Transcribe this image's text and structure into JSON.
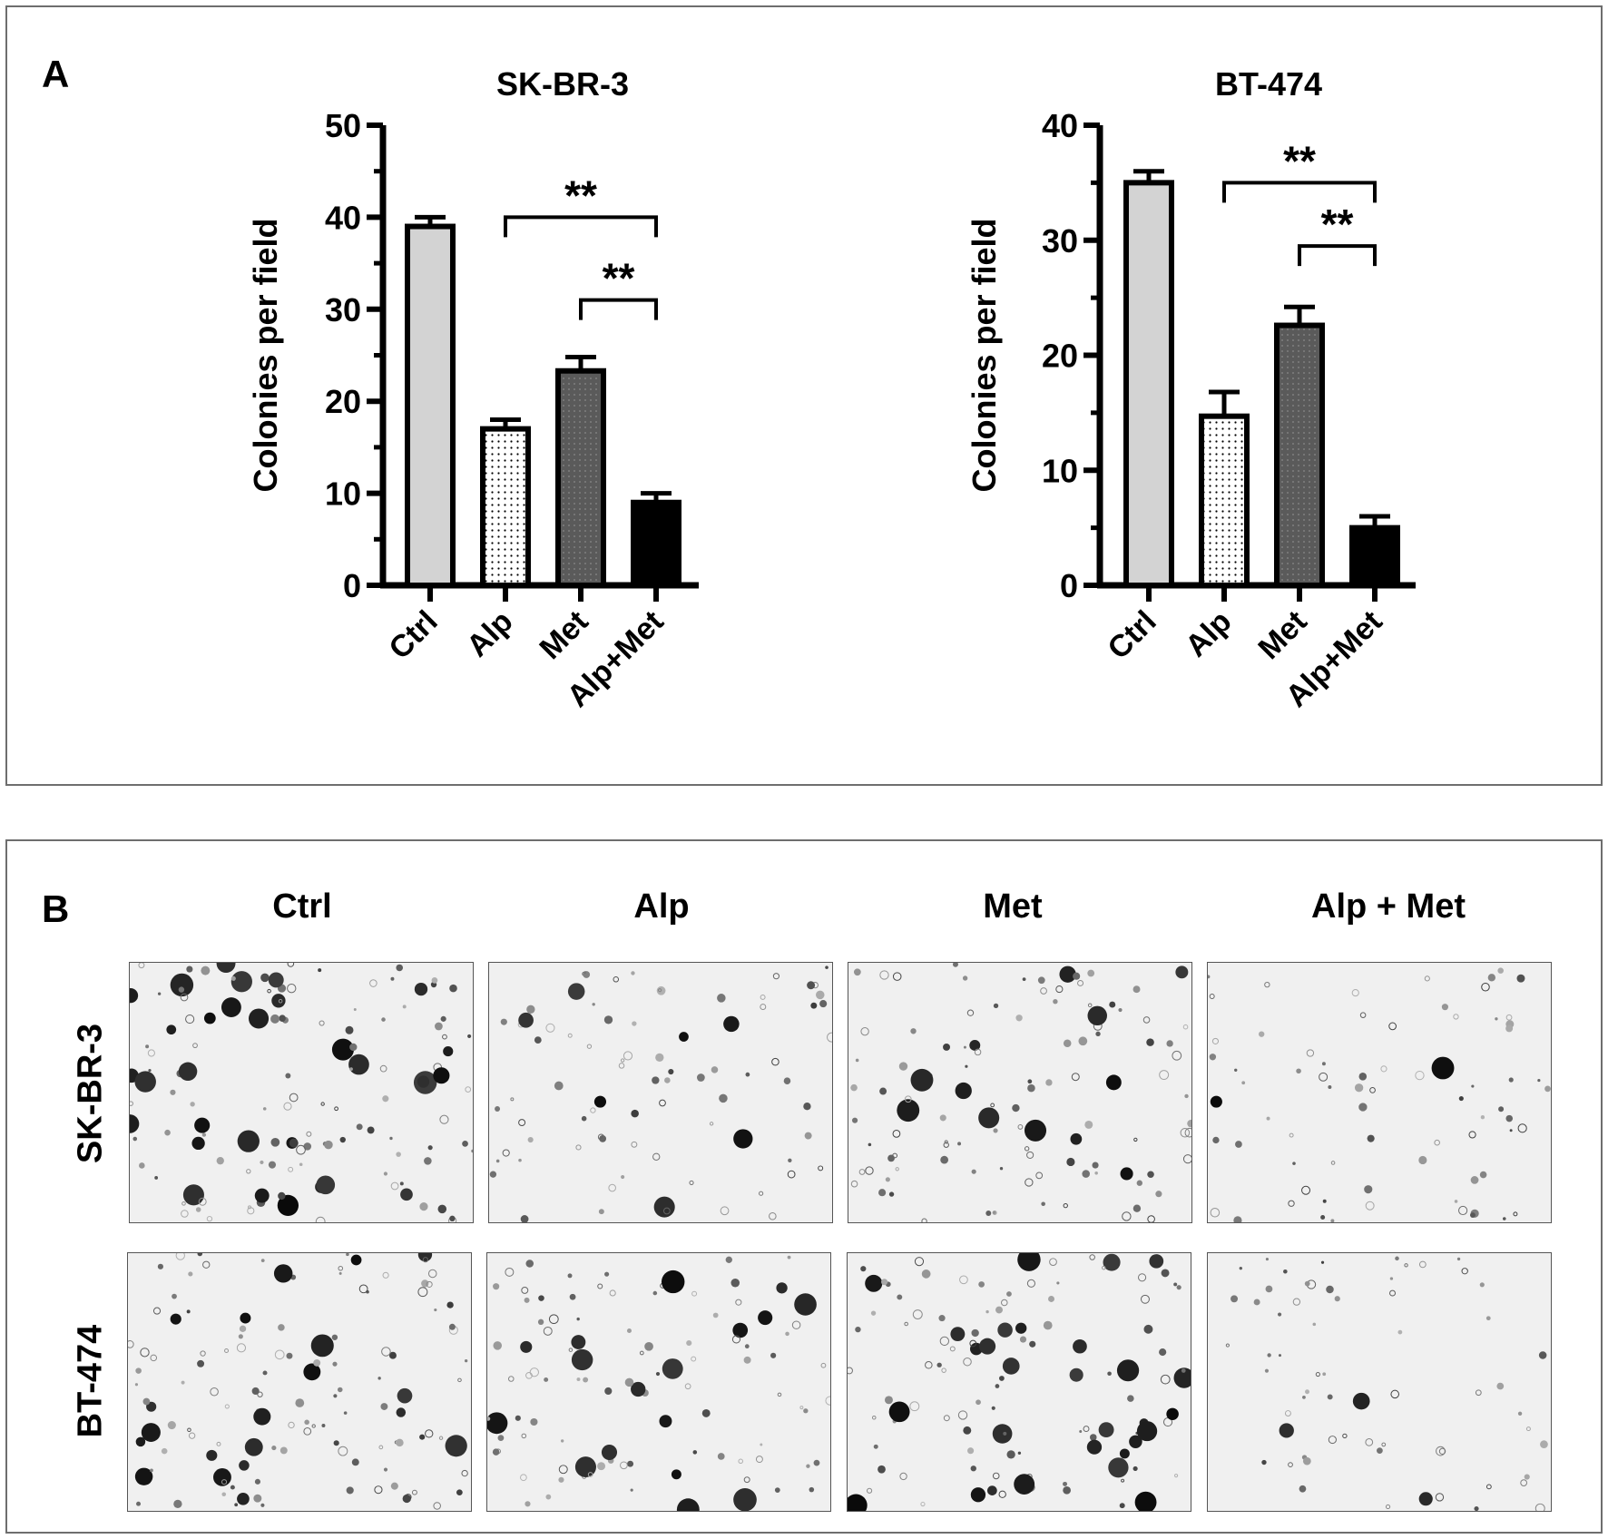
{
  "panel_a": {
    "label": "A"
  },
  "panel_b": {
    "label": "B",
    "columns": [
      "Ctrl",
      "Alp",
      "Met",
      "Alp + Met"
    ],
    "rows": [
      "SK-BR-3",
      "BT-474"
    ],
    "image_tone": "#f0f0f0",
    "density": [
      [
        1.0,
        0.45,
        0.75,
        0.35
      ],
      [
        0.9,
        0.7,
        0.8,
        0.25
      ]
    ]
  },
  "chart_data": [
    {
      "type": "bar",
      "title": "SK-BR-3",
      "ylabel": "Colonies per field",
      "categories": [
        "Ctrl",
        "Alp",
        "Met",
        "Alp+Met"
      ],
      "values": [
        39,
        17,
        23.3,
        9
      ],
      "errors": [
        1.0,
        1.0,
        1.5,
        1.0
      ],
      "ylim": [
        0,
        50
      ],
      "yticks": [
        0,
        10,
        20,
        30,
        40,
        50
      ],
      "fills": [
        "#d3d3d3",
        "dots",
        "#5a5a5a",
        "#000000"
      ],
      "significance": [
        {
          "from": 1,
          "to": 3,
          "y": 40,
          "label": "**"
        },
        {
          "from": 2,
          "to": 3,
          "y": 31,
          "label": "**"
        }
      ],
      "grid": false,
      "legend": "none"
    },
    {
      "type": "bar",
      "title": "BT-474",
      "ylabel": "Colonies per field",
      "categories": [
        "Ctrl",
        "Alp",
        "Met",
        "Alp+Met"
      ],
      "values": [
        35,
        14.7,
        22.6,
        5
      ],
      "errors": [
        1.0,
        2.1,
        1.6,
        1.0
      ],
      "ylim": [
        0,
        40
      ],
      "yticks": [
        0,
        10,
        20,
        30,
        40
      ],
      "fills": [
        "#d3d3d3",
        "dots",
        "#5a5a5a",
        "#000000"
      ],
      "significance": [
        {
          "from": 1,
          "to": 3,
          "y": 35,
          "label": "**"
        },
        {
          "from": 2,
          "to": 3,
          "y": 29.5,
          "label": "**"
        }
      ],
      "grid": false,
      "legend": "none"
    }
  ]
}
